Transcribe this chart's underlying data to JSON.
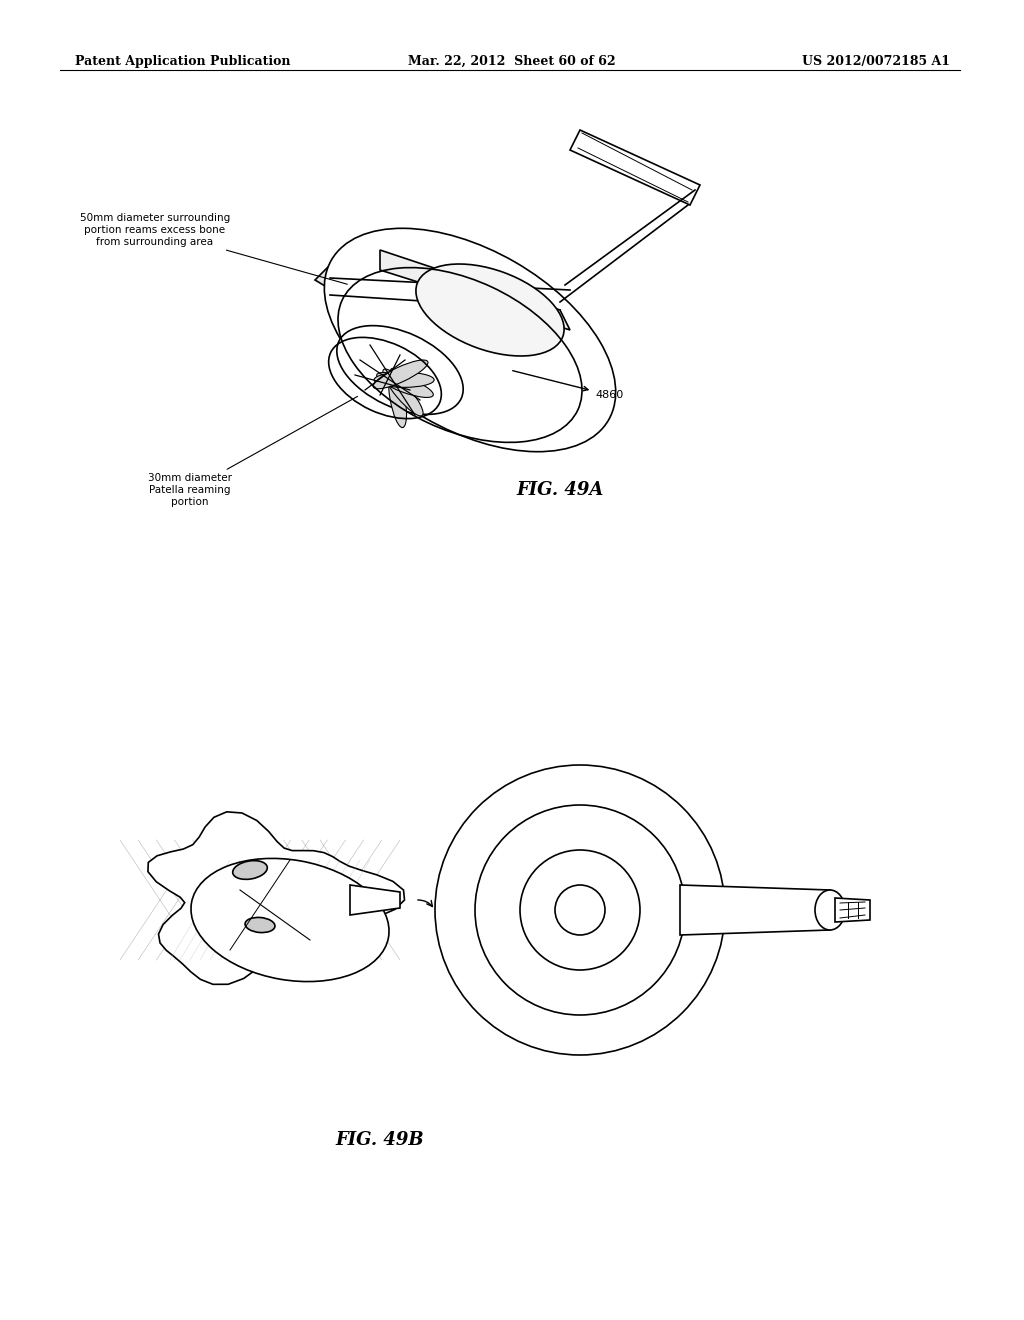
{
  "background_color": "#ffffff",
  "header_left": "Patent Application Publication",
  "header_center": "Mar. 22, 2012  Sheet 60 of 62",
  "header_right": "US 2012/0072185 A1",
  "fig49a_label": "FIG. 49A",
  "fig49b_label": "FIG. 49B",
  "annotation_4860": "4860",
  "annotation_top": "50mm diameter surrounding\nportion reams excess bone\nfrom surrounding area",
  "annotation_bottom": "30mm diameter\nPatella reaming\nportion",
  "header_fontsize": 9,
  "annotation_fontsize": 8,
  "fig_label_fontsize": 13
}
